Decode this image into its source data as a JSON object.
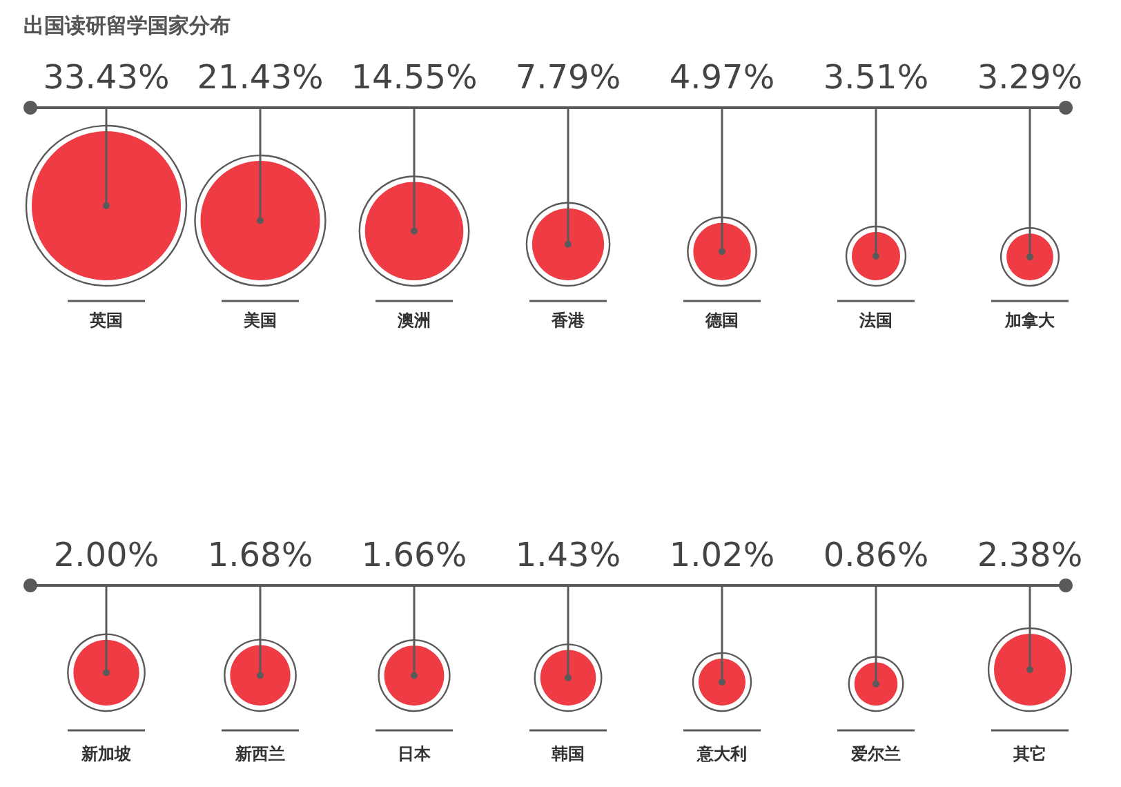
{
  "chart_data": {
    "type": "other",
    "title": "出国读研留学国家分布",
    "categories": [
      "英国",
      "美国",
      "澳洲",
      "香港",
      "德国",
      "法国",
      "加拿大",
      "新加坡",
      "新西兰",
      "日本",
      "韩国",
      "意大利",
      "爱尔兰",
      "其它"
    ],
    "values": [
      33.43,
      21.43,
      14.55,
      7.79,
      4.97,
      3.51,
      3.29,
      2.0,
      1.68,
      1.66,
      1.43,
      1.02,
      0.86,
      2.38
    ],
    "value_labels": [
      "33.43%",
      "21.43%",
      "14.55%",
      "7.79%",
      "4.97%",
      "3.51%",
      "3.29%",
      "2.00%",
      "1.68%",
      "1.66%",
      "1.43%",
      "1.02%",
      "0.86%",
      "2.38%"
    ],
    "color": "#ee3b44"
  }
}
